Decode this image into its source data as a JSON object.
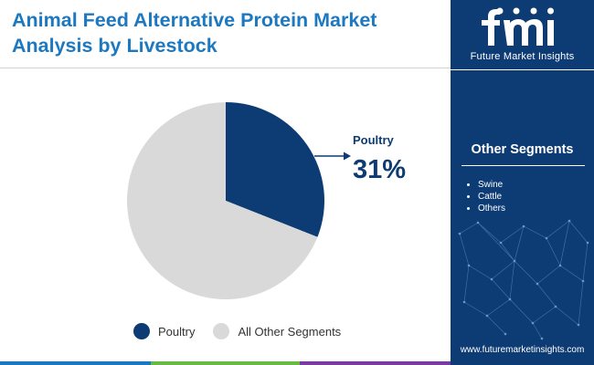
{
  "header": {
    "title_line1": "Animal Feed Alternative Protein Market",
    "title_line2": "Analysis by Livestock"
  },
  "chart_data": {
    "type": "pie",
    "title": "Animal Feed Alternative Protein Market Analysis by Livestock",
    "slices": [
      {
        "label": "Poultry",
        "value": 31,
        "color": "#0d3b73"
      },
      {
        "label": "All Other Segments",
        "value": 69,
        "color": "#d9d9d9"
      }
    ],
    "callout": {
      "label": "Poultry",
      "value_text": "31%"
    },
    "legend": {
      "position": "bottom"
    }
  },
  "sidebar": {
    "brand_name": "Future Market Insights",
    "other_segments_title": "Other Segments",
    "other_segments": [
      "Swine",
      "Cattle",
      "Others"
    ],
    "website": "www.futuremarketinsights.com",
    "background_color": "#0d3b73"
  },
  "footer_bar_colors": [
    "#1c78c0",
    "#69b945",
    "#7a3aa0"
  ]
}
